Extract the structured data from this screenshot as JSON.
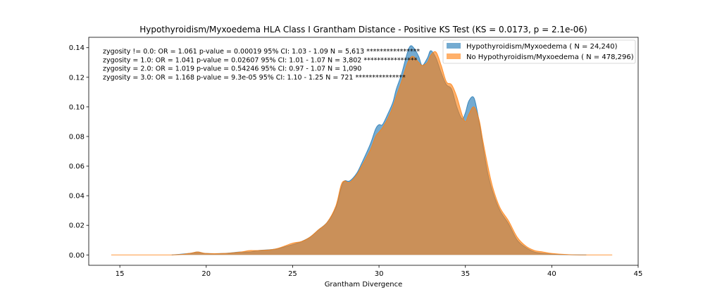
{
  "chart_data": {
    "type": "area",
    "title": "Hypothyroidism/Myxoedema HLA Class I Grantham Distance - Positive KS Test (KS = 0.0173, p = 2.1e-06)",
    "xlabel": "Grantham Divergence",
    "ylabel": "",
    "xlim": [
      13.2,
      45.0
    ],
    "ylim": [
      -0.007,
      0.147
    ],
    "xticks": [
      15,
      20,
      25,
      30,
      35,
      40,
      45
    ],
    "yticks": [
      0.0,
      0.02,
      0.04,
      0.06,
      0.08,
      0.1,
      0.12,
      0.14
    ],
    "ytick_labels": [
      "0.00",
      "0.02",
      "0.04",
      "0.06",
      "0.08",
      "0.10",
      "0.12",
      "0.14"
    ],
    "legend_position": "top-right",
    "annotations": [
      "zygosity != 0.0: OR = 1.061   p-value = 0.00019   95% CI: 1.03 - 1.09   N = 5,613 ****************",
      "zygosity = 1.0:  OR = 1.041   p-value = 0.02607   95% CI: 1.01 - 1.07   N = 3,802 ****************",
      "zygosity = 2.0:  OR = 1.019   p-value = 0.54246   95% CI: 0.97 - 1.07   N = 1,090",
      "zygosity = 3.0:  OR = 1.168   p-value = 9.3e-05   95% CI: 1.10 - 1.25   N = 721 ***************"
    ],
    "series": [
      {
        "name": "Hypothyroidism/Myxoedema ( N = 24,240)",
        "color": "#1f77b4",
        "x": [
          18.0,
          19.0,
          19.5,
          20.0,
          21.0,
          22.0,
          22.5,
          23.0,
          24.0,
          25.0,
          25.5,
          26.0,
          26.5,
          27.0,
          27.5,
          27.8,
          28.0,
          28.3,
          28.7,
          29.0,
          29.5,
          29.8,
          30.0,
          30.2,
          30.5,
          30.8,
          31.0,
          31.3,
          31.6,
          31.8,
          32.0,
          32.3,
          32.5,
          32.8,
          33.0,
          33.3,
          33.6,
          33.9,
          34.2,
          34.5,
          34.8,
          35.0,
          35.2,
          35.5,
          35.8,
          36.0,
          36.3,
          36.6,
          37.0,
          37.5,
          38.0,
          38.5,
          39.0,
          39.5,
          40.0,
          41.0,
          42.0
        ],
        "y": [
          0.0,
          0.001,
          0.002,
          0.001,
          0.001,
          0.002,
          0.002,
          0.003,
          0.004,
          0.007,
          0.009,
          0.012,
          0.017,
          0.022,
          0.032,
          0.045,
          0.05,
          0.05,
          0.055,
          0.062,
          0.075,
          0.085,
          0.088,
          0.088,
          0.095,
          0.103,
          0.112,
          0.122,
          0.135,
          0.141,
          0.14,
          0.134,
          0.128,
          0.133,
          0.138,
          0.133,
          0.123,
          0.115,
          0.112,
          0.1,
          0.092,
          0.096,
          0.104,
          0.106,
          0.09,
          0.075,
          0.055,
          0.042,
          0.03,
          0.021,
          0.01,
          0.005,
          0.002,
          0.001,
          0.0005,
          0.0001,
          0.0
        ]
      },
      {
        "name": "No Hypothyroidism/Myxoedema ( N = 478,296)",
        "color": "#ff7f0e",
        "x": [
          14.5,
          18.0,
          19.0,
          19.5,
          20.0,
          21.0,
          22.0,
          22.5,
          23.0,
          24.0,
          25.0,
          25.5,
          26.0,
          26.5,
          27.0,
          27.5,
          27.8,
          28.0,
          28.3,
          28.7,
          29.0,
          29.5,
          29.8,
          30.0,
          30.2,
          30.5,
          30.8,
          31.0,
          31.3,
          31.6,
          31.8,
          32.0,
          32.3,
          32.5,
          32.8,
          33.0,
          33.3,
          33.6,
          33.9,
          34.2,
          34.5,
          34.8,
          35.0,
          35.2,
          35.5,
          35.8,
          36.0,
          36.3,
          36.6,
          37.0,
          37.5,
          38.0,
          38.5,
          39.0,
          39.5,
          40.0,
          41.0,
          42.0,
          43.5
        ],
        "y": [
          0.0,
          0.0,
          0.001,
          0.002,
          0.001,
          0.001,
          0.002,
          0.003,
          0.003,
          0.004,
          0.008,
          0.009,
          0.012,
          0.017,
          0.022,
          0.033,
          0.047,
          0.05,
          0.049,
          0.054,
          0.06,
          0.071,
          0.08,
          0.083,
          0.086,
          0.092,
          0.1,
          0.107,
          0.117,
          0.128,
          0.133,
          0.134,
          0.13,
          0.128,
          0.13,
          0.135,
          0.137,
          0.128,
          0.117,
          0.115,
          0.107,
          0.095,
          0.09,
          0.095,
          0.1,
          0.091,
          0.078,
          0.06,
          0.045,
          0.032,
          0.023,
          0.012,
          0.006,
          0.003,
          0.002,
          0.001,
          0.0002,
          0.0,
          0.0
        ]
      }
    ]
  }
}
